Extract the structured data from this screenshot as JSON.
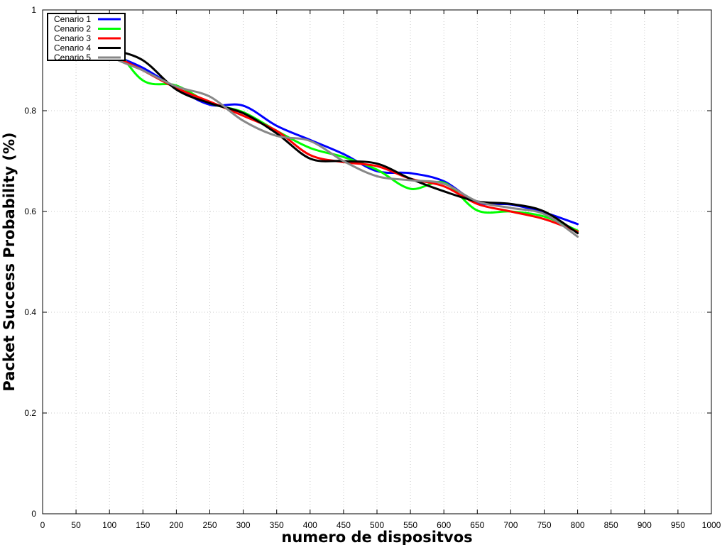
{
  "chart_data": {
    "type": "line",
    "title": "",
    "xlabel": "numero de dispositvos",
    "ylabel": "Packet Success Probability (%)",
    "xlim": [
      0,
      1000
    ],
    "ylim": [
      0,
      1
    ],
    "xticks": [
      "0",
      "50",
      "100",
      "150",
      "200",
      "250",
      "300",
      "350",
      "400",
      "450",
      "500",
      "550",
      "600",
      "650",
      "700",
      "750",
      "800",
      "850",
      "900",
      "950",
      "1000"
    ],
    "yticks": [
      "0",
      "0.2",
      "0.4",
      "0.6",
      "0.8",
      "1"
    ],
    "grid": true,
    "legend_position": "top-left",
    "series": [
      {
        "name": "Cenario 1",
        "color": "#0000ff",
        "x": [
          50,
          100,
          150,
          200,
          250,
          300,
          350,
          400,
          450,
          500,
          550,
          600,
          650,
          700,
          750,
          800
        ],
        "y": [
          0.955,
          0.915,
          0.885,
          0.845,
          0.812,
          0.81,
          0.77,
          0.742,
          0.714,
          0.68,
          0.676,
          0.66,
          0.618,
          0.614,
          0.598,
          0.575
        ]
      },
      {
        "name": "Cenario 2",
        "color": "#00ff00",
        "x": [
          50,
          100,
          150,
          200,
          250,
          300,
          350,
          400,
          450,
          500,
          550,
          600,
          650,
          700,
          750,
          800
        ],
        "y": [
          0.955,
          0.935,
          0.86,
          0.85,
          0.815,
          0.797,
          0.76,
          0.726,
          0.708,
          0.683,
          0.645,
          0.657,
          0.602,
          0.6,
          0.59,
          0.562
        ]
      },
      {
        "name": "Cenario 3",
        "color": "#ff0000",
        "x": [
          50,
          100,
          150,
          200,
          250,
          300,
          350,
          400,
          450,
          500,
          550,
          600,
          650,
          700,
          750,
          800
        ],
        "y": [
          0.965,
          0.915,
          0.88,
          0.845,
          0.818,
          0.79,
          0.76,
          0.712,
          0.698,
          0.69,
          0.665,
          0.65,
          0.615,
          0.6,
          0.585,
          0.56
        ]
      },
      {
        "name": "Cenario 4",
        "color": "#000000",
        "x": [
          50,
          100,
          150,
          200,
          250,
          300,
          350,
          400,
          450,
          500,
          550,
          600,
          650,
          700,
          750,
          800
        ],
        "y": [
          0.96,
          0.925,
          0.9,
          0.842,
          0.815,
          0.795,
          0.755,
          0.705,
          0.7,
          0.695,
          0.665,
          0.64,
          0.62,
          0.615,
          0.6,
          0.557
        ]
      },
      {
        "name": "Cenario 5",
        "color": "#888888",
        "x": [
          50,
          100,
          150,
          200,
          250,
          300,
          350,
          400,
          450,
          500,
          550,
          600,
          650,
          700,
          750,
          800
        ],
        "y": [
          0.97,
          0.91,
          0.88,
          0.848,
          0.828,
          0.78,
          0.75,
          0.74,
          0.7,
          0.67,
          0.662,
          0.655,
          0.62,
          0.607,
          0.595,
          0.55
        ]
      }
    ]
  }
}
